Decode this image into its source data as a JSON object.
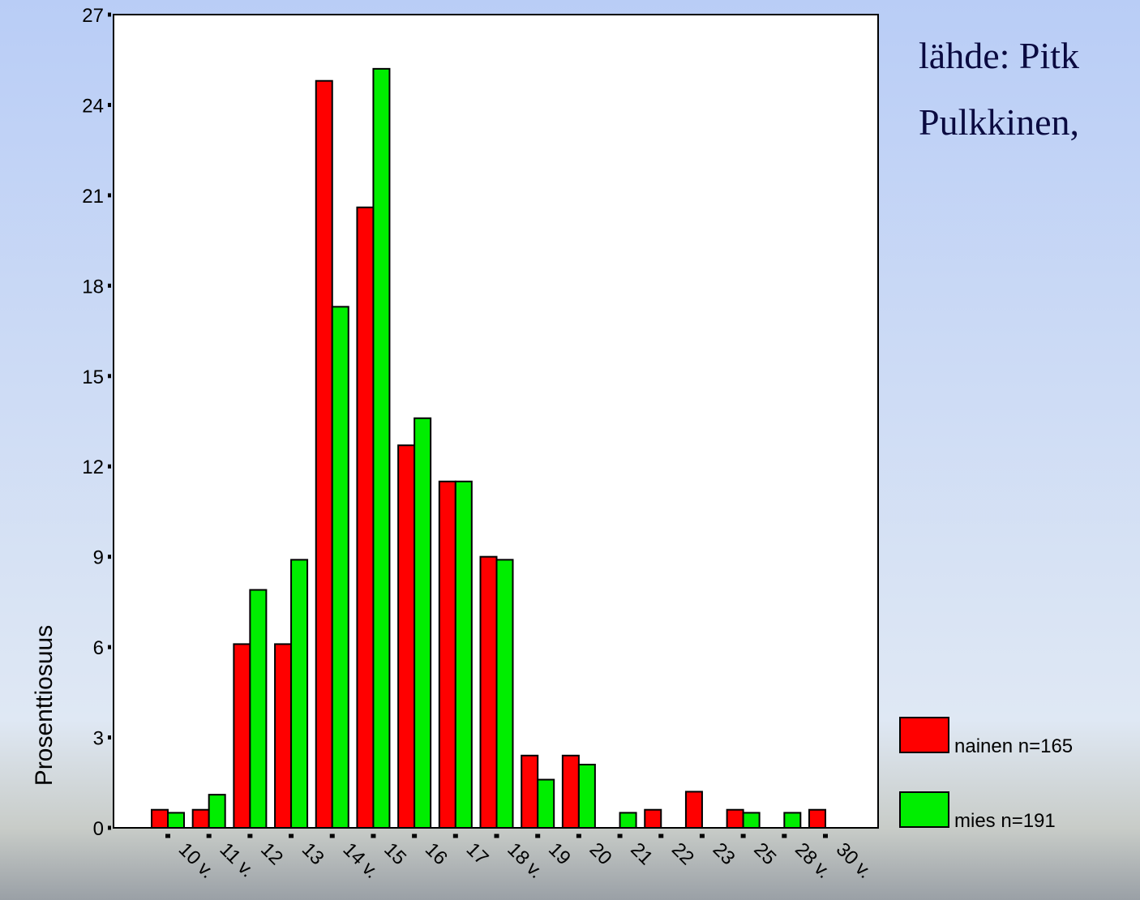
{
  "chart_data": {
    "type": "bar",
    "annotations": [
      "lähde: Pitk",
      "Pulkkinen,"
    ],
    "ylabel": "Prosenttiosuus",
    "categories": [
      "10 v.",
      "11 v.",
      "12",
      "13",
      "14 v.",
      "15",
      "16",
      "17",
      "18 v.",
      "19",
      "20",
      "21",
      "22",
      "23",
      "25",
      "28 v.",
      "30 v."
    ],
    "series": [
      {
        "name": "nainen n=165",
        "color": "#ff0000",
        "values": [
          0.6,
          0.6,
          6.1,
          6.1,
          24.8,
          20.6,
          12.7,
          11.5,
          9.0,
          2.4,
          2.4,
          0,
          0.6,
          1.2,
          0.6,
          0,
          0.6
        ]
      },
      {
        "name": "mies n=191",
        "color": "#00ee00",
        "values": [
          0.5,
          1.1,
          7.9,
          8.9,
          17.3,
          25.2,
          13.6,
          11.5,
          8.9,
          1.6,
          2.1,
          0.5,
          0,
          0,
          0.5,
          0.5,
          0
        ]
      }
    ],
    "ylim": [
      0,
      27
    ],
    "yticks": [
      0,
      3,
      6,
      9,
      12,
      15,
      18,
      21,
      24,
      27
    ],
    "grid": false
  }
}
